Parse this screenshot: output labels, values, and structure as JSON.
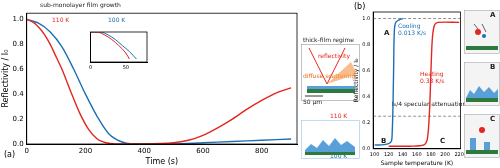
{
  "chart_data": [
    {
      "type": "line",
      "title": "(a)",
      "xlabel": "Time (s)",
      "ylabel": "Reflectivity / I₀",
      "xlim": [
        0,
        920
      ],
      "xticks": [
        0,
        200,
        400,
        600,
        800
      ],
      "ylim": [
        0,
        1.05
      ],
      "yticks": [
        {
          "value": 0,
          "label": "0.0"
        },
        0.2,
        0.4,
        0.6,
        0.8,
        {
          "value": 1,
          "label": "1.0"
        }
      ],
      "grid": false,
      "series": [
        {
          "color": "#e3261f",
          "x": [
            0,
            20,
            40,
            60,
            80,
            100,
            120,
            150,
            180,
            210,
            240,
            270,
            300,
            400,
            500,
            550,
            600,
            650,
            700,
            750,
            800,
            850,
            900
          ],
          "values": [
            1.0,
            0.98,
            0.94,
            0.88,
            0.8,
            0.7,
            0.6,
            0.42,
            0.25,
            0.12,
            0.04,
            0.01,
            0.0,
            0.0,
            0.01,
            0.03,
            0.07,
            0.13,
            0.2,
            0.28,
            0.35,
            0.41,
            0.45
          ]
        },
        {
          "color": "#1c6fb5",
          "x": [
            0,
            40,
            80,
            120,
            160,
            200,
            240,
            280,
            320,
            360,
            500,
            600,
            700,
            800,
            900
          ],
          "values": [
            1.0,
            0.97,
            0.9,
            0.78,
            0.6,
            0.4,
            0.22,
            0.08,
            0.02,
            0.0,
            0.0,
            0.01,
            0.02,
            0.03,
            0.04
          ]
        }
      ],
      "annotations": [
        {
          "text": "sub-monolayer film growth"
        },
        {
          "text": "110 K",
          "color": "#e3261f"
        },
        {
          "text": "100 K",
          "color": "#1c6fb5"
        },
        {
          "text": "thick-film regime"
        },
        {
          "text": "reflectivity",
          "color": "#e3261f"
        },
        {
          "text": "diffuse scattering",
          "color": "#e06a10"
        },
        {
          "text": "50 μm"
        },
        {
          "text": "110 K",
          "color": "#e3261f"
        },
        {
          "text": "100 K",
          "color": "#1c6fb5"
        }
      ]
    },
    {
      "type": "line",
      "xlim": [
        0,
        80
      ],
      "xticks": [
        0,
        50
      ],
      "ylim": [
        0.9,
        1.0
      ],
      "yticks": [
        0.9,
        1.0
      ],
      "tick_labels": "x",
      "grid": false,
      "series": [
        {
          "color": "#e3261f",
          "x": [
            0,
            10,
            20,
            30,
            40,
            50,
            55
          ],
          "values": [
            1.0,
            1.0,
            0.99,
            0.975,
            0.955,
            0.93,
            0.91
          ]
        },
        {
          "color": "#1c6fb5",
          "x": [
            0,
            15,
            25,
            35,
            45,
            55,
            65
          ],
          "values": [
            1.0,
            1.0,
            0.99,
            0.975,
            0.955,
            0.935,
            0.91
          ]
        }
      ]
    },
    {
      "type": "line",
      "title": "(b)",
      "xlabel": "Sample temperature (K)",
      "ylabel": "Reflectivity / I₀",
      "xlim": [
        98,
        222
      ],
      "xticks": [
        100,
        120,
        140,
        160,
        180,
        200,
        220
      ],
      "ylim": [
        0,
        1.05
      ],
      "yticks": [
        {
          "value": 0,
          "label": "0.0"
        },
        0.2,
        0.4,
        0.6,
        0.8,
        {
          "value": 1,
          "label": "1.0"
        }
      ],
      "grid": false,
      "reference_lines": [
        1.0,
        0.25
      ],
      "series": [
        {
          "color": "#1c6fb5",
          "x": [
            100,
            110,
            120,
            124,
            125,
            126,
            127,
            128,
            130,
            135,
            140
          ],
          "values": [
            0.03,
            0.03,
            0.04,
            0.06,
            0.12,
            0.3,
            0.6,
            0.9,
            0.97,
            0.99,
            1.0
          ]
        },
        {
          "color": "#e3261f",
          "x": [
            120,
            150,
            170,
            175,
            178,
            180,
            182,
            185,
            190,
            220
          ],
          "values": [
            0.02,
            0.02,
            0.03,
            0.08,
            0.3,
            0.6,
            0.85,
            0.95,
            0.97,
            0.97
          ]
        }
      ],
      "annotations": [
        {
          "text": "Cooling\n0.013 K/s",
          "color": "#1c6fb5"
        },
        {
          "text": "Heating\n0.33 K/s",
          "color": "#e3261f"
        },
        {
          "text": "I₀/4 specular attenuation"
        },
        {
          "text": "A"
        },
        {
          "text": "B"
        },
        {
          "text": "C"
        }
      ]
    }
  ],
  "schematic_panels": [
    "A",
    "B",
    "C"
  ]
}
